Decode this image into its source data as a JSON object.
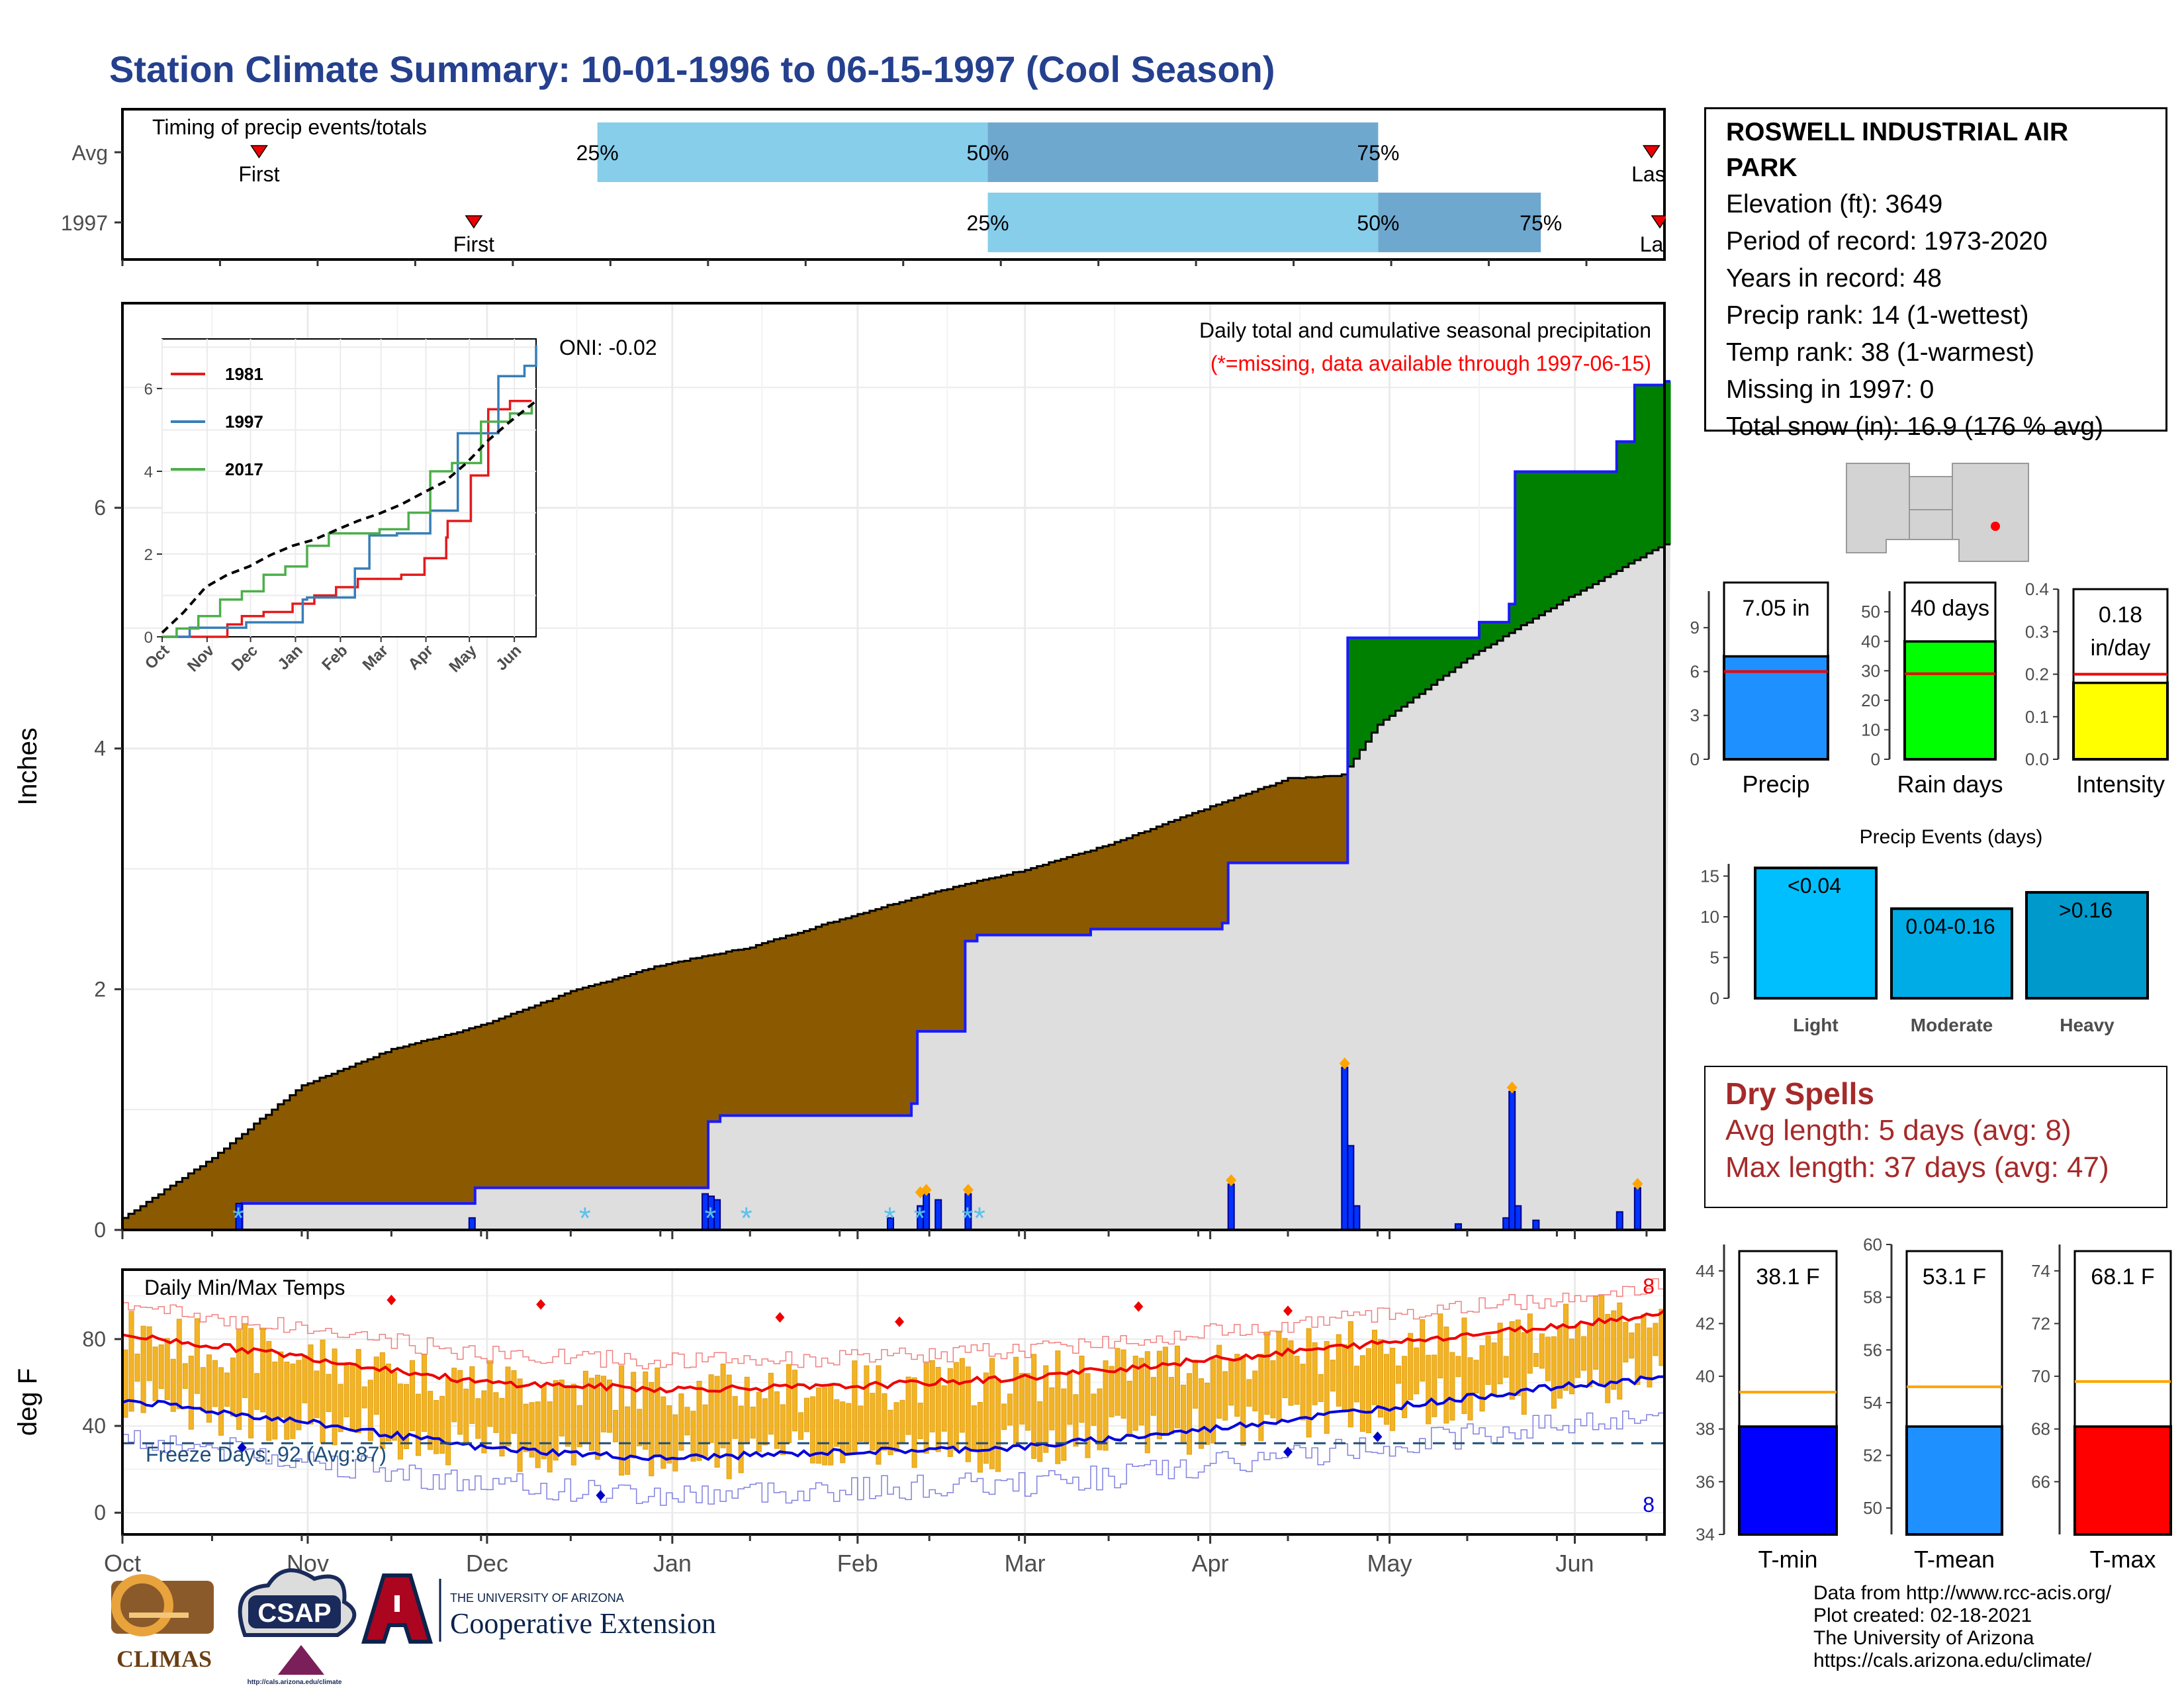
{
  "title": "Station Climate Summary: 10-01-1996 to 06-15-1997 (Cool Season)",
  "station": {
    "name": "ROSWELL INDUSTRIAL AIR PARK",
    "lines": [
      "Elevation (ft): 3649",
      "Period of record: 1973-2020",
      "Years in record: 48",
      "Precip rank: 14 (1-wettest)",
      "Temp rank: 38 (1-warmest)",
      "Missing in 1997: 0",
      "Total snow (in): 16.9 (176 % avg)"
    ]
  },
  "timing": {
    "label": "Timing of precip events/totals",
    "rows": [
      "Avg",
      "1997"
    ],
    "first_label": "First",
    "last_label": "Last",
    "pct_labels": [
      "25%",
      "50%",
      "75%"
    ]
  },
  "main": {
    "ylabel": "Inches",
    "oni": "ONI: -0.02",
    "subtitle": "Daily total and cumulative seasonal precipitation",
    "missing_note": "(*=missing, data available through 1997-06-15)",
    "yticks": [
      "0",
      "2",
      "4",
      "6"
    ],
    "months": [
      "Oct",
      "Nov",
      "Dec",
      "Jan",
      "Feb",
      "Mar",
      "Apr",
      "May",
      "Jun"
    ]
  },
  "inset": {
    "legend": [
      "1981",
      "1997",
      "2017"
    ],
    "yticks": [
      "0",
      "2",
      "4",
      "6"
    ],
    "months": [
      "Oct",
      "Nov",
      "Dec",
      "Jan",
      "Feb",
      "Mar",
      "Apr",
      "May",
      "Jun"
    ]
  },
  "temps": {
    "label": "Daily Min/Max Temps",
    "ylabel": "deg F",
    "yticks": [
      "0",
      "40",
      "80"
    ],
    "freeze": "Freeze Days: 92 (Avg:87)",
    "max_count": "8",
    "min_count": "8"
  },
  "bars_precip": {
    "value_label": "7.05 in",
    "xlabel": "Precip",
    "yticks": [
      "0",
      "3",
      "6",
      "9"
    ]
  },
  "bars_raindays": {
    "value_label": "40 days",
    "xlabel": "Rain days",
    "yticks": [
      "0",
      "10",
      "20",
      "30",
      "40",
      "50"
    ]
  },
  "bars_intensity": {
    "value_label": "0.18 in/day",
    "xlabel": "Intensity",
    "yticks": [
      "0.0",
      "0.1",
      "0.2",
      "0.3",
      "0.4"
    ]
  },
  "events": {
    "title": "Precip Events (days)",
    "categories": [
      "Light",
      "Moderate",
      "Heavy"
    ],
    "labels": [
      "<0.04",
      "0.04-0.16",
      ">0.16"
    ],
    "yticks": [
      "0",
      "5",
      "10",
      "15"
    ]
  },
  "dry": {
    "title": "Dry Spells",
    "avg": "Avg length: 5 days (avg: 8)",
    "max": "Max length: 37 days (avg: 47)"
  },
  "tbars": {
    "tmin": {
      "value_label": "38.1 F",
      "xlabel": "T-min",
      "yticks": [
        "34",
        "36",
        "38",
        "40",
        "42",
        "44"
      ]
    },
    "tmean": {
      "value_label": "53.1 F",
      "xlabel": "T-mean",
      "yticks": [
        "50",
        "52",
        "54",
        "56",
        "58",
        "60"
      ]
    },
    "tmax": {
      "value_label": "68.1 F",
      "xlabel": "T-max",
      "yticks": [
        "66",
        "68",
        "70",
        "72",
        "74"
      ]
    }
  },
  "credits": [
    "Data from http://www.rcc-acis.org/",
    "Plot created: 02-18-2021",
    "The University of Arizona",
    "https://cals.arizona.edu/climate/"
  ],
  "logos": {
    "climas": "CLIMAS",
    "csap": "CSAP",
    "csap_url": "http://cals.arizona.edu/climate",
    "ua_top": "THE UNIVERSITY OF ARIZONA",
    "ua_bottom": "Cooperative Extension"
  },
  "chart_data": [
    {
      "type": "bar",
      "name": "timing",
      "rows": [
        "Avg",
        "1997"
      ],
      "first_day": {
        "Avg": 21,
        "1997": 54
      },
      "last_day": {
        "Avg": 235,
        "1997": 258
      },
      "p25": {
        "Avg": 73,
        "1997": 133
      },
      "p50": {
        "Avg": 133,
        "1997": 193
      },
      "p75": {
        "Avg": 193,
        "1997": 218
      },
      "xlim_days": [
        0,
        237
      ]
    },
    {
      "type": "area",
      "name": "cumulative precipitation",
      "ylabel": "Inches",
      "ylim": [
        0,
        7.7
      ],
      "season_days": 258,
      "avg_cumulative": {
        "days": [
          0,
          15,
          30,
          45,
          60,
          75,
          90,
          105,
          120,
          135,
          150,
          165,
          180,
          195,
          204,
          210,
          225,
          240,
          258
        ],
        "values": [
          0.1,
          0.6,
          1.2,
          1.5,
          1.7,
          1.98,
          2.2,
          2.35,
          2.58,
          2.8,
          2.98,
          3.2,
          3.48,
          3.75,
          3.78,
          4.2,
          4.75,
          5.2,
          5.7
        ]
      },
      "cumulative_1997": {
        "days": [
          0,
          19,
          20,
          58,
          59,
          97,
          98,
          100,
          128,
          132,
          133,
          136,
          141,
          143,
          162,
          184,
          185,
          204,
          205,
          227,
          232,
          233,
          250,
          253,
          258
        ],
        "values": [
          0,
          0,
          0.22,
          0.22,
          0.35,
          0.35,
          0.9,
          0.95,
          0.95,
          1.05,
          1.65,
          1.65,
          2.4,
          2.45,
          2.5,
          2.55,
          3.05,
          3.05,
          4.92,
          5.05,
          5.2,
          6.3,
          6.55,
          7.02,
          7.05
        ]
      },
      "daily_bars": [
        {
          "day": 19,
          "value": 0.22
        },
        {
          "day": 58,
          "value": 0.1
        },
        {
          "day": 97,
          "value": 0.3
        },
        {
          "day": 98,
          "value": 0.28
        },
        {
          "day": 99,
          "value": 0.25
        },
        {
          "day": 128,
          "value": 0.1
        },
        {
          "day": 133,
          "value": 0.2
        },
        {
          "day": 134,
          "value": 0.3
        },
        {
          "day": 136,
          "value": 0.25
        },
        {
          "day": 141,
          "value": 0.3
        },
        {
          "day": 185,
          "value": 0.38
        },
        {
          "day": 204,
          "value": 1.35
        },
        {
          "day": 205,
          "value": 0.7
        },
        {
          "day": 206,
          "value": 0.2
        },
        {
          "day": 223,
          "value": 0.05
        },
        {
          "day": 231,
          "value": 0.1
        },
        {
          "day": 232,
          "value": 1.15
        },
        {
          "day": 233,
          "value": 0.2
        },
        {
          "day": 236,
          "value": 0.08
        },
        {
          "day": 250,
          "value": 0.15
        },
        {
          "day": 253,
          "value": 0.35
        }
      ],
      "snow_days": [
        19,
        77,
        98,
        104,
        128,
        133,
        141,
        143
      ],
      "heavy_marks": [
        {
          "day": 133,
          "value": 0.28
        },
        {
          "day": 134,
          "value": 0.3
        },
        {
          "day": 141,
          "value": 0.3
        },
        {
          "day": 185,
          "value": 0.38
        },
        {
          "day": 204,
          "value": 1.35
        },
        {
          "day": 232,
          "value": 1.15
        },
        {
          "day": 253,
          "value": 0.35
        }
      ]
    },
    {
      "type": "line",
      "name": "inset cumulative",
      "ylim": [
        0,
        7
      ],
      "series": [
        {
          "name": "1981",
          "color": "#e41a1c",
          "days": [
            0,
            30,
            45,
            55,
            70,
            90,
            105,
            120,
            135,
            165,
            181,
            196,
            197,
            213,
            225,
            240,
            255
          ],
          "values": [
            0,
            0,
            0.3,
            0.5,
            0.6,
            0.8,
            1.0,
            1.2,
            1.4,
            1.5,
            1.9,
            2.4,
            2.8,
            3.9,
            5.5,
            5.7,
            5.7
          ]
        },
        {
          "name": "1997",
          "color": "#377eb8",
          "days": [
            0,
            19,
            58,
            97,
            100,
            133,
            143,
            162,
            185,
            204,
            232,
            250,
            258
          ],
          "values": [
            0,
            0.22,
            0.35,
            0.9,
            0.95,
            1.65,
            2.45,
            2.5,
            3.05,
            4.92,
            6.3,
            6.55,
            7.05
          ]
        },
        {
          "name": "2017",
          "color": "#4daf4a",
          "days": [
            0,
            10,
            25,
            40,
            55,
            70,
            85,
            100,
            115,
            130,
            150,
            170,
            185,
            200,
            220,
            240,
            255
          ],
          "values": [
            0,
            0.2,
            0.5,
            0.9,
            1.1,
            1.5,
            1.7,
            2.2,
            2.5,
            2.5,
            2.6,
            3.0,
            4.0,
            4.2,
            5.2,
            5.4,
            5.6
          ]
        },
        {
          "name": "avg",
          "color": "#000000",
          "days": [
            0,
            15,
            30,
            45,
            60,
            75,
            90,
            105,
            120,
            135,
            150,
            165,
            180,
            195,
            210,
            225,
            240,
            258
          ],
          "values": [
            0.1,
            0.6,
            1.2,
            1.5,
            1.7,
            1.98,
            2.2,
            2.35,
            2.58,
            2.8,
            2.98,
            3.2,
            3.48,
            3.75,
            4.2,
            4.75,
            5.2,
            5.7
          ]
        }
      ]
    },
    {
      "type": "line",
      "name": "daily temperatures",
      "ylabel": "deg F",
      "ylim": [
        -10,
        110
      ],
      "avg_max": {
        "days": [
          0,
          30,
          60,
          90,
          120,
          150,
          180,
          210,
          240,
          258
        ],
        "values": [
          82,
          72,
          60,
          57,
          58,
          62,
          70,
          78,
          86,
          92
        ]
      },
      "avg_min": {
        "days": [
          0,
          30,
          60,
          90,
          120,
          150,
          180,
          210,
          240,
          258
        ],
        "values": [
          52,
          42,
          30,
          25,
          28,
          30,
          38,
          48,
          58,
          62
        ]
      },
      "freeze_line": 32
    },
    {
      "type": "bar",
      "name": "Precip",
      "values": [
        7.05
      ],
      "average": 6.0,
      "ylim": [
        0,
        11.5
      ]
    },
    {
      "type": "bar",
      "name": "Rain days",
      "values": [
        40
      ],
      "average": 29,
      "ylim": [
        0,
        57
      ]
    },
    {
      "type": "bar",
      "name": "Intensity",
      "values": [
        0.18
      ],
      "average": 0.2,
      "ylim": [
        0,
        0.4
      ]
    },
    {
      "type": "bar",
      "name": "Precip Events (days)",
      "categories": [
        "Light",
        "Moderate",
        "Heavy"
      ],
      "values": [
        16,
        11,
        13
      ],
      "ylim": [
        0,
        16.5
      ]
    },
    {
      "type": "bar",
      "name": "T-min",
      "values": [
        38.1
      ],
      "average": 39.4,
      "ylim": [
        34,
        45
      ]
    },
    {
      "type": "bar",
      "name": "T-mean",
      "values": [
        53.1
      ],
      "average": 54.6,
      "ylim": [
        49,
        60
      ]
    },
    {
      "type": "bar",
      "name": "T-max",
      "values": [
        68.1
      ],
      "average": 69.8,
      "ylim": [
        64,
        75
      ]
    }
  ]
}
